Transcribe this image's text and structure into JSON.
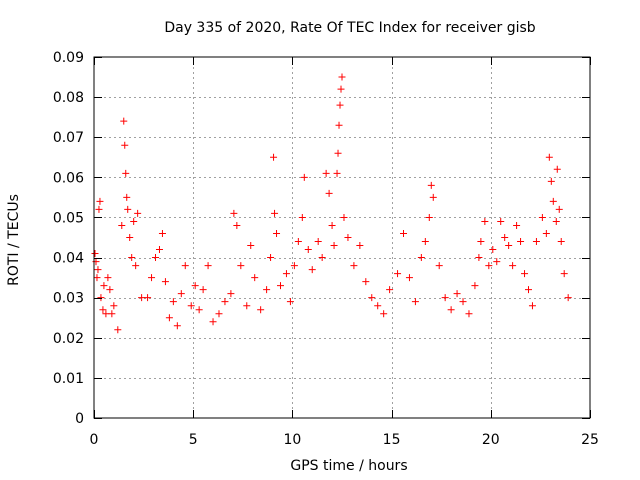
{
  "chart_data": {
    "type": "scatter",
    "title": "Day 335 of 2020, Rate Of TEC Index for receiver gisb",
    "xlabel": "GPS time / hours",
    "ylabel": "ROTI / TECUs",
    "xlim": [
      0,
      25
    ],
    "ylim": [
      0,
      0.09
    ],
    "x_ticks": [
      0,
      5,
      10,
      15,
      20,
      25
    ],
    "x_tick_labels": [
      "0",
      "5",
      "10",
      "15",
      "20",
      "25"
    ],
    "y_ticks": [
      0,
      0.01,
      0.02,
      0.03,
      0.04,
      0.05,
      0.06,
      0.07,
      0.08,
      0.09
    ],
    "y_tick_labels": [
      "0",
      "0.01",
      "0.02",
      "0.03",
      "0.04",
      "0.05",
      "0.06",
      "0.07",
      "0.08",
      "0.09"
    ],
    "grid": true,
    "marker": "+",
    "colors": {
      "points": "#ff0000",
      "grid": "#a0a0a0",
      "axes": "#000000"
    },
    "series": [
      {
        "values": [
          [
            0.05,
            0.041
          ],
          [
            0.1,
            0.039
          ],
          [
            0.15,
            0.035
          ],
          [
            0.2,
            0.037
          ],
          [
            0.25,
            0.052
          ],
          [
            0.3,
            0.054
          ],
          [
            0.35,
            0.03
          ],
          [
            0.45,
            0.027
          ],
          [
            0.5,
            0.033
          ],
          [
            0.6,
            0.026
          ],
          [
            0.7,
            0.035
          ],
          [
            0.8,
            0.032
          ],
          [
            0.9,
            0.026
          ],
          [
            1.0,
            0.028
          ],
          [
            1.2,
            0.022
          ],
          [
            1.4,
            0.048
          ],
          [
            1.5,
            0.074
          ],
          [
            1.55,
            0.068
          ],
          [
            1.6,
            0.061
          ],
          [
            1.65,
            0.055
          ],
          [
            1.7,
            0.052
          ],
          [
            1.8,
            0.045
          ],
          [
            1.9,
            0.04
          ],
          [
            2.0,
            0.049
          ],
          [
            2.1,
            0.038
          ],
          [
            2.2,
            0.051
          ],
          [
            2.4,
            0.03
          ],
          [
            2.7,
            0.03
          ],
          [
            2.9,
            0.035
          ],
          [
            3.1,
            0.04
          ],
          [
            3.3,
            0.042
          ],
          [
            3.45,
            0.046
          ],
          [
            3.6,
            0.034
          ],
          [
            3.8,
            0.025
          ],
          [
            4.0,
            0.029
          ],
          [
            4.2,
            0.023
          ],
          [
            4.4,
            0.031
          ],
          [
            4.6,
            0.038
          ],
          [
            4.9,
            0.028
          ],
          [
            5.1,
            0.033
          ],
          [
            5.3,
            0.027
          ],
          [
            5.5,
            0.032
          ],
          [
            5.75,
            0.038
          ],
          [
            6.0,
            0.024
          ],
          [
            6.3,
            0.026
          ],
          [
            6.6,
            0.029
          ],
          [
            6.9,
            0.031
          ],
          [
            7.05,
            0.051
          ],
          [
            7.2,
            0.048
          ],
          [
            7.4,
            0.038
          ],
          [
            7.7,
            0.028
          ],
          [
            7.9,
            0.043
          ],
          [
            8.1,
            0.035
          ],
          [
            8.4,
            0.027
          ],
          [
            8.7,
            0.032
          ],
          [
            8.9,
            0.04
          ],
          [
            9.05,
            0.065
          ],
          [
            9.1,
            0.051
          ],
          [
            9.2,
            0.046
          ],
          [
            9.4,
            0.033
          ],
          [
            9.7,
            0.036
          ],
          [
            9.9,
            0.029
          ],
          [
            10.1,
            0.038
          ],
          [
            10.3,
            0.044
          ],
          [
            10.5,
            0.05
          ],
          [
            10.6,
            0.06
          ],
          [
            10.8,
            0.042
          ],
          [
            11.0,
            0.037
          ],
          [
            11.3,
            0.044
          ],
          [
            11.5,
            0.04
          ],
          [
            11.7,
            0.061
          ],
          [
            11.85,
            0.056
          ],
          [
            12.0,
            0.048
          ],
          [
            12.1,
            0.043
          ],
          [
            12.25,
            0.061
          ],
          [
            12.3,
            0.066
          ],
          [
            12.35,
            0.073
          ],
          [
            12.4,
            0.078
          ],
          [
            12.45,
            0.082
          ],
          [
            12.5,
            0.085
          ],
          [
            12.6,
            0.05
          ],
          [
            12.8,
            0.045
          ],
          [
            13.1,
            0.038
          ],
          [
            13.4,
            0.043
          ],
          [
            13.7,
            0.034
          ],
          [
            14.0,
            0.03
          ],
          [
            14.3,
            0.028
          ],
          [
            14.6,
            0.026
          ],
          [
            14.9,
            0.032
          ],
          [
            15.3,
            0.036
          ],
          [
            15.6,
            0.046
          ],
          [
            15.9,
            0.035
          ],
          [
            16.2,
            0.029
          ],
          [
            16.5,
            0.04
          ],
          [
            16.7,
            0.044
          ],
          [
            16.9,
            0.05
          ],
          [
            17.0,
            0.058
          ],
          [
            17.1,
            0.055
          ],
          [
            17.4,
            0.038
          ],
          [
            17.7,
            0.03
          ],
          [
            18.0,
            0.027
          ],
          [
            18.3,
            0.031
          ],
          [
            18.6,
            0.029
          ],
          [
            18.9,
            0.026
          ],
          [
            19.2,
            0.033
          ],
          [
            19.4,
            0.04
          ],
          [
            19.5,
            0.044
          ],
          [
            19.7,
            0.049
          ],
          [
            19.9,
            0.038
          ],
          [
            20.1,
            0.042
          ],
          [
            20.3,
            0.039
          ],
          [
            20.5,
            0.049
          ],
          [
            20.7,
            0.045
          ],
          [
            20.9,
            0.043
          ],
          [
            21.1,
            0.038
          ],
          [
            21.3,
            0.048
          ],
          [
            21.5,
            0.044
          ],
          [
            21.7,
            0.036
          ],
          [
            21.9,
            0.032
          ],
          [
            22.1,
            0.028
          ],
          [
            22.3,
            0.044
          ],
          [
            22.6,
            0.05
          ],
          [
            22.8,
            0.046
          ],
          [
            22.95,
            0.065
          ],
          [
            23.05,
            0.059
          ],
          [
            23.15,
            0.054
          ],
          [
            23.3,
            0.049
          ],
          [
            23.35,
            0.062
          ],
          [
            23.45,
            0.052
          ],
          [
            23.55,
            0.044
          ],
          [
            23.7,
            0.036
          ],
          [
            23.9,
            0.03
          ]
        ]
      }
    ]
  }
}
